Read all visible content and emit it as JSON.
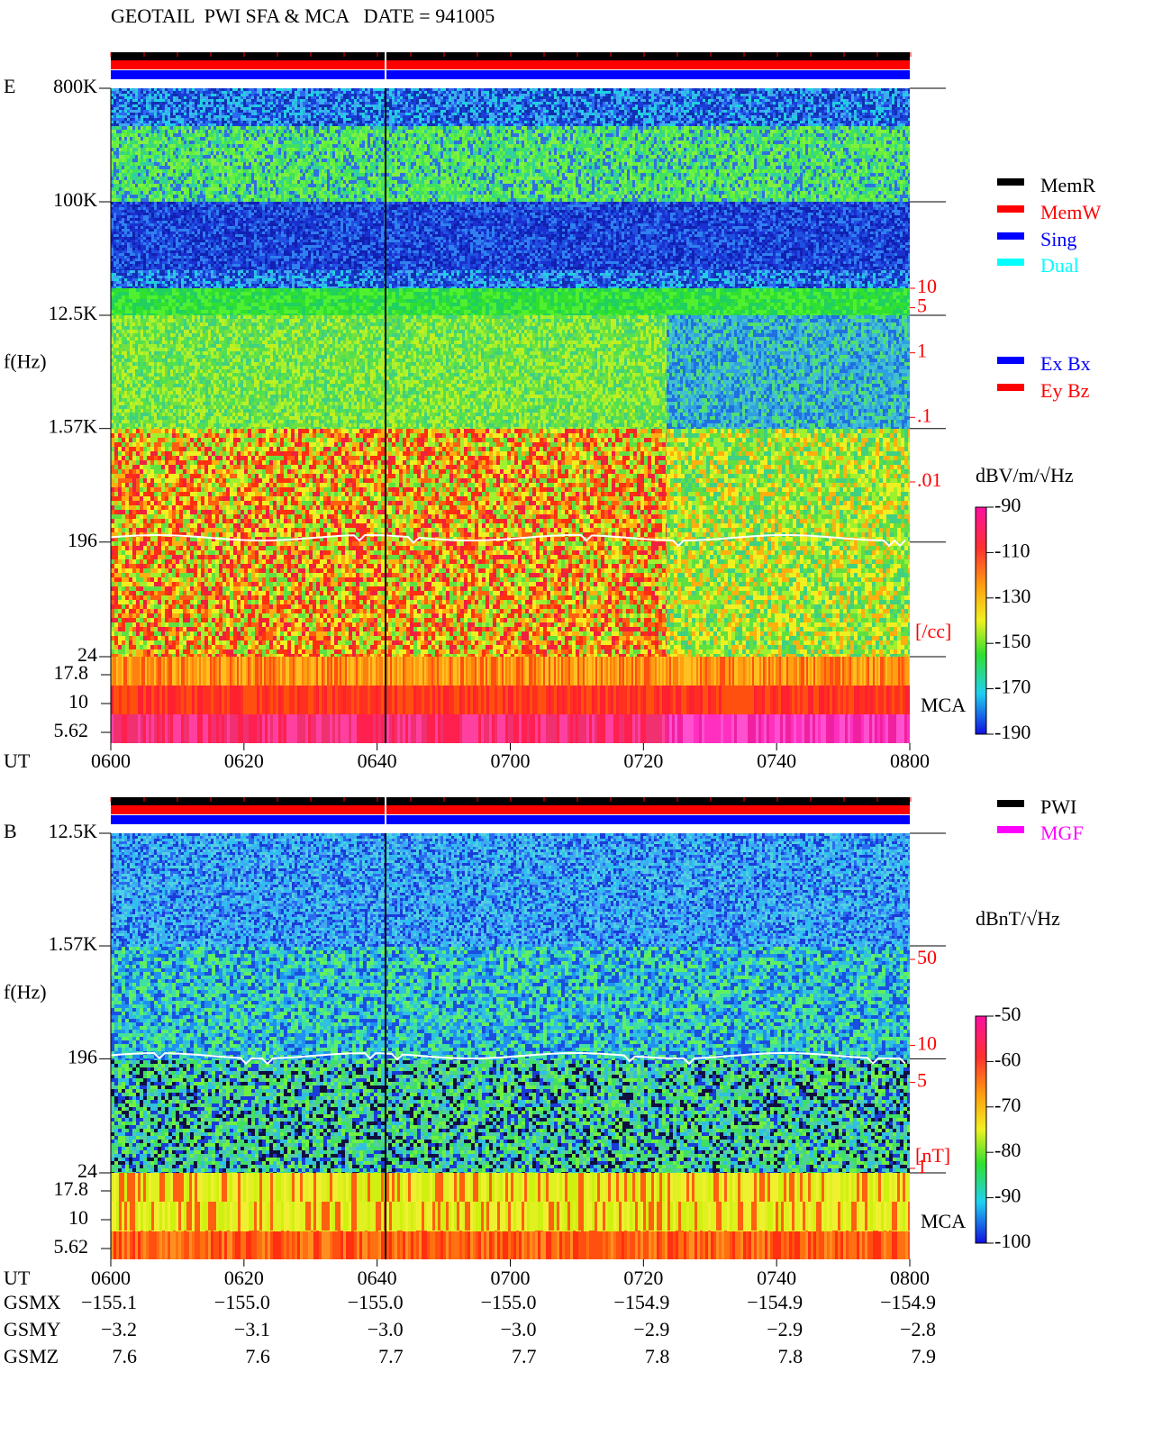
{
  "title": "GEOTAIL  PWI SFA & MCA   DATE = 941005",
  "chart_data": [
    {
      "type": "spectrogram",
      "panel_label": "E",
      "y_label": "f(Hz)",
      "x_label": "UT",
      "x_ticks": [
        "0600",
        "0620",
        "0640",
        "0700",
        "0720",
        "0740",
        "0800"
      ],
      "yscale": "log",
      "ylim": [
        24,
        800000
      ],
      "yticks": [
        {
          "value": 800000,
          "label": "800K"
        },
        {
          "value": 100000,
          "label": "100K"
        },
        {
          "value": 12500,
          "label": "12.5K"
        },
        {
          "value": 1570,
          "label": "1.57K"
        },
        196,
        24
      ],
      "mca_label": "MCA",
      "mca_yticks": [
        17.8,
        10,
        5.62
      ],
      "y2lim": [
        0.01,
        10
      ],
      "y2ticks": [
        10,
        5,
        1,
        {
          "value": 0.1,
          "label": ".1"
        },
        {
          "value": 0.01,
          "label": ".01"
        }
      ],
      "y2_unit": "[/cc]",
      "colorbar": {
        "label": "dBV/m/√Hz",
        "lim": [
          -190,
          -90
        ],
        "ticks": [
          -90,
          -110,
          -130,
          -150,
          -170,
          -190
        ]
      },
      "legends": [
        [
          {
            "name": "MemR",
            "color": "#000000"
          },
          {
            "name": "MemW",
            "color": "#ff0000"
          },
          {
            "name": "Sing",
            "color": "#0000ff"
          },
          {
            "name": "Dual",
            "color": "#00ffff"
          }
        ],
        [
          {
            "name": "Ex Bx",
            "color": "#0000ff"
          },
          {
            "name": "Ey Bz",
            "color": "#ff0000"
          }
        ]
      ]
    },
    {
      "type": "spectrogram",
      "panel_label": "B",
      "y_label": "f(Hz)",
      "x_label": "UT",
      "x_ticks": [
        "0600",
        "0620",
        "0640",
        "0700",
        "0720",
        "0740",
        "0800"
      ],
      "yscale": "log",
      "ylim": [
        24,
        12500
      ],
      "yticks": [
        {
          "value": 12500,
          "label": "12.5K"
        },
        {
          "value": 1570,
          "label": "1.57K"
        },
        196,
        24
      ],
      "mca_label": "MCA",
      "mca_yticks": [
        17.8,
        10,
        5.62
      ],
      "y2lim": [
        1,
        50
      ],
      "y2ticks": [
        50,
        10,
        5,
        1
      ],
      "y2_unit": "[nT]",
      "colorbar": {
        "label": "dBnT/√Hz",
        "lim": [
          -100,
          -50
        ],
        "ticks": [
          -50,
          -60,
          -70,
          -80,
          -90,
          -100
        ]
      },
      "legends": [
        [
          {
            "name": "PWI",
            "color": "#000000"
          },
          {
            "name": "MGF",
            "color": "#ff00ff"
          }
        ]
      ]
    }
  ],
  "orbit": {
    "rows": [
      {
        "label": "GSMX",
        "values": [
          "−155.1",
          "−155.0",
          "−155.0",
          "−155.0",
          "−154.9",
          "−154.9",
          "−154.9"
        ]
      },
      {
        "label": "GSMY",
        "values": [
          "−3.2",
          "−3.1",
          "−3.0",
          "−3.0",
          "−2.9",
          "−2.9",
          "−2.8"
        ]
      },
      {
        "label": "GSMZ",
        "values": [
          "7.6",
          "7.6",
          "7.7",
          "7.7",
          "7.8",
          "7.8",
          "7.9"
        ]
      }
    ]
  }
}
